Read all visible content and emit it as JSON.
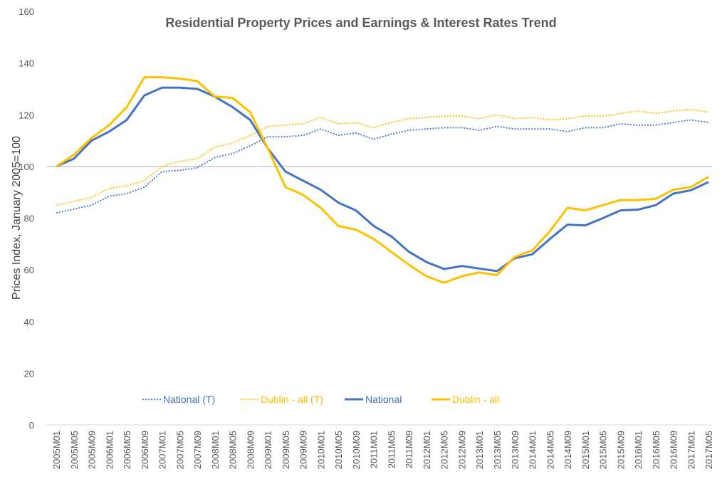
{
  "chart_data": {
    "type": "line",
    "title": "Residential Property Prices and Earnings & Interest Rates Trend",
    "xlabel": "",
    "ylabel": "Prices Index, January 2005=100",
    "ylim": [
      0,
      160
    ],
    "yticks": [
      0,
      20,
      40,
      60,
      80,
      100,
      120,
      140,
      160
    ],
    "reference_line": 100,
    "grid": false,
    "legend_position": "bottom-inside",
    "categories": [
      "2005M01",
      "2005M05",
      "2005M09",
      "2006M01",
      "2006M05",
      "2006M09",
      "2007M01",
      "2007M05",
      "2007M09",
      "2008M01",
      "2008M05",
      "2008M09",
      "2009M01",
      "2009M05",
      "2009M09",
      "2010M01",
      "2010M05",
      "2010M09",
      "2011M01",
      "2011M05",
      "2011M09",
      "2012M01",
      "2012M05",
      "2012M09",
      "2013M01",
      "2013M05",
      "2013M09",
      "2014M01",
      "2014M05",
      "2014M09",
      "2015M01",
      "2015M05",
      "2015M09",
      "2016M01",
      "2016M05",
      "2016M09",
      "2017M01",
      "2017M05"
    ],
    "series": [
      {
        "name": "National  (T)",
        "color": "#4472C4",
        "style": "dotted",
        "values": [
          82,
          83.5,
          85,
          88.5,
          89.5,
          92,
          98,
          98.5,
          99.5,
          103.5,
          105,
          108,
          111.5,
          111.5,
          112,
          114.5,
          112,
          113,
          110.5,
          112.5,
          114,
          114.5,
          115,
          115,
          114,
          115.5,
          114.5,
          114.5,
          114.5,
          113.5,
          115,
          115,
          116.5,
          116,
          116,
          117,
          118,
          117
        ]
      },
      {
        "name": "Dublin - all (T)",
        "color": "#FFC000",
        "style": "dotted",
        "values": [
          85,
          86.5,
          88,
          91.5,
          92.5,
          94.5,
          100,
          102,
          103,
          107.5,
          109,
          112,
          115.5,
          116,
          116.5,
          119,
          116.5,
          117,
          115,
          117,
          118.5,
          119,
          119.5,
          119.5,
          118.5,
          120,
          118.5,
          119,
          118,
          118.5,
          119.5,
          119.5,
          120.5,
          121.5,
          120.5,
          121.5,
          122,
          121
        ]
      },
      {
        "name": "National",
        "color": "#4472C4",
        "style": "solid",
        "values": [
          100,
          103,
          110,
          113.5,
          118,
          127.5,
          130.5,
          130.5,
          130,
          127,
          123,
          118,
          107,
          98,
          94.5,
          91,
          86,
          83,
          77,
          73,
          67,
          63,
          60.3,
          61.5,
          60.5,
          59.5,
          64.5,
          66,
          72,
          77.5,
          77.2,
          80,
          83,
          83.3,
          85,
          89.5,
          90.8,
          94
        ]
      },
      {
        "name": "Dublin - all",
        "color": "#FFC000",
        "style": "solid",
        "values": [
          100,
          104.5,
          111,
          116,
          123,
          134.5,
          134.5,
          134,
          133,
          127,
          126.5,
          121,
          107,
          92,
          89,
          84,
          77,
          75.5,
          72,
          67,
          62,
          57.5,
          55,
          57.5,
          59,
          58,
          65,
          67.5,
          75,
          84,
          83,
          85,
          87,
          87,
          87.5,
          91,
          92,
          96
        ]
      }
    ]
  }
}
